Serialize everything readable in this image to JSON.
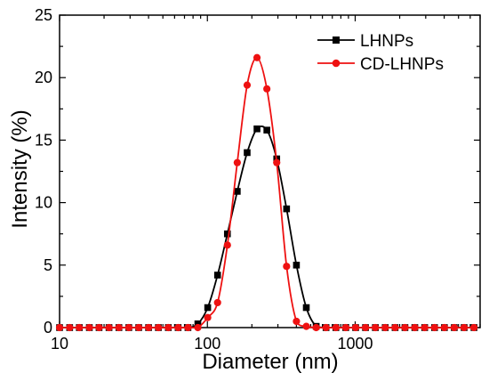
{
  "chart_data": {
    "type": "line",
    "title": "",
    "xlabel": "Diameter (nm)",
    "ylabel": "Intensity (%)",
    "x_scale": "log",
    "xlim": [
      10,
      7000
    ],
    "ylim": [
      0,
      25
    ],
    "x_ticks": [
      {
        "value": 10,
        "label": "10"
      },
      {
        "value": 100,
        "label": "100"
      },
      {
        "value": 1000,
        "label": "1000"
      }
    ],
    "y_ticks": [
      {
        "value": 0,
        "label": "0"
      },
      {
        "value": 5,
        "label": "5"
      },
      {
        "value": 10,
        "label": "10"
      },
      {
        "value": 15,
        "label": "15"
      },
      {
        "value": 20,
        "label": "20"
      },
      {
        "value": 25,
        "label": "25"
      }
    ],
    "grid": false,
    "legend_position": "top-right",
    "x": [
      10.0,
      11.7,
      13.6,
      15.9,
      18.5,
      21.6,
      25.2,
      29.4,
      34.3,
      40.0,
      46.6,
      54.4,
      63.4,
      73.9,
      86.2,
      100.5,
      117.2,
      136.6,
      159.3,
      185.8,
      216.6,
      252.6,
      294.5,
      343.4,
      400.4,
      466.9,
      544.5,
      634.9,
      740.4,
      863.3,
      1006.7,
      1174.0,
      1369.0,
      1596.4,
      1861.5,
      2170.8,
      2531.4,
      2951.8,
      3442.1,
      4013.8,
      4680.5,
      5458.0,
      6364.6
    ],
    "series": [
      {
        "name": "LHNPs",
        "color": "#000000",
        "marker": "square",
        "values": [
          0,
          0,
          0,
          0,
          0,
          0,
          0,
          0,
          0,
          0,
          0,
          0,
          0,
          0,
          0.3,
          1.6,
          4.2,
          7.5,
          10.9,
          14.0,
          15.9,
          15.8,
          13.5,
          9.5,
          5.0,
          1.6,
          0.1,
          0,
          0,
          0,
          0,
          0,
          0,
          0,
          0,
          0,
          0,
          0,
          0,
          0,
          0,
          0,
          0
        ]
      },
      {
        "name": "CD-LHNPs",
        "color": "#ee1111",
        "marker": "circle",
        "values": [
          0,
          0,
          0,
          0,
          0,
          0,
          0,
          0,
          0,
          0,
          0,
          0,
          0,
          0,
          0,
          0.8,
          2.0,
          6.6,
          13.2,
          19.4,
          21.6,
          19.1,
          13.2,
          4.9,
          0.5,
          0.1,
          0,
          0,
          0,
          0,
          0,
          0,
          0,
          0,
          0,
          0,
          0,
          0,
          0,
          0,
          0,
          0,
          0
        ]
      }
    ]
  }
}
